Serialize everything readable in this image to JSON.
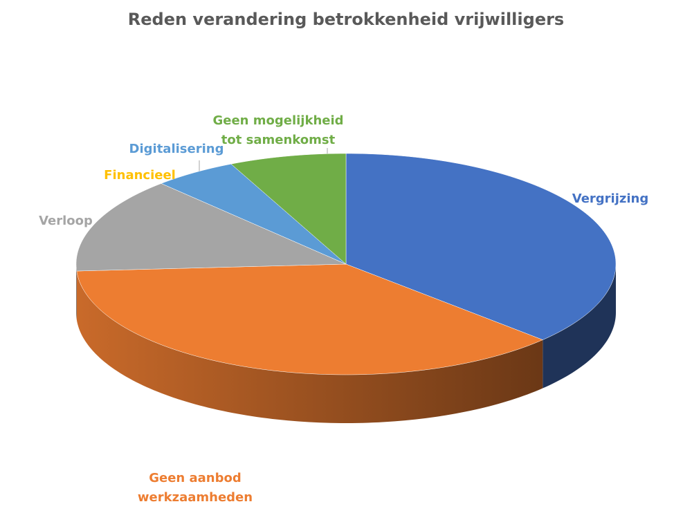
{
  "chart_data": {
    "type": "pie3d",
    "title": "Reden verandering betrokkenheid vrijwilligers",
    "categories": [
      "Vergrijzing",
      "Geen aanbod\nwerkzaamheden",
      "Verloop",
      "Financieel",
      "Digitalisering",
      "Geen mogelijkheid\ntot samenkomst"
    ],
    "values": [
      37,
      37,
      14,
      0,
      5,
      7
    ],
    "colors": [
      "#4472c4",
      "#ed7d31",
      "#a5a5a5",
      "#ffc000",
      "#5b9bd5",
      "#70ad47"
    ]
  }
}
